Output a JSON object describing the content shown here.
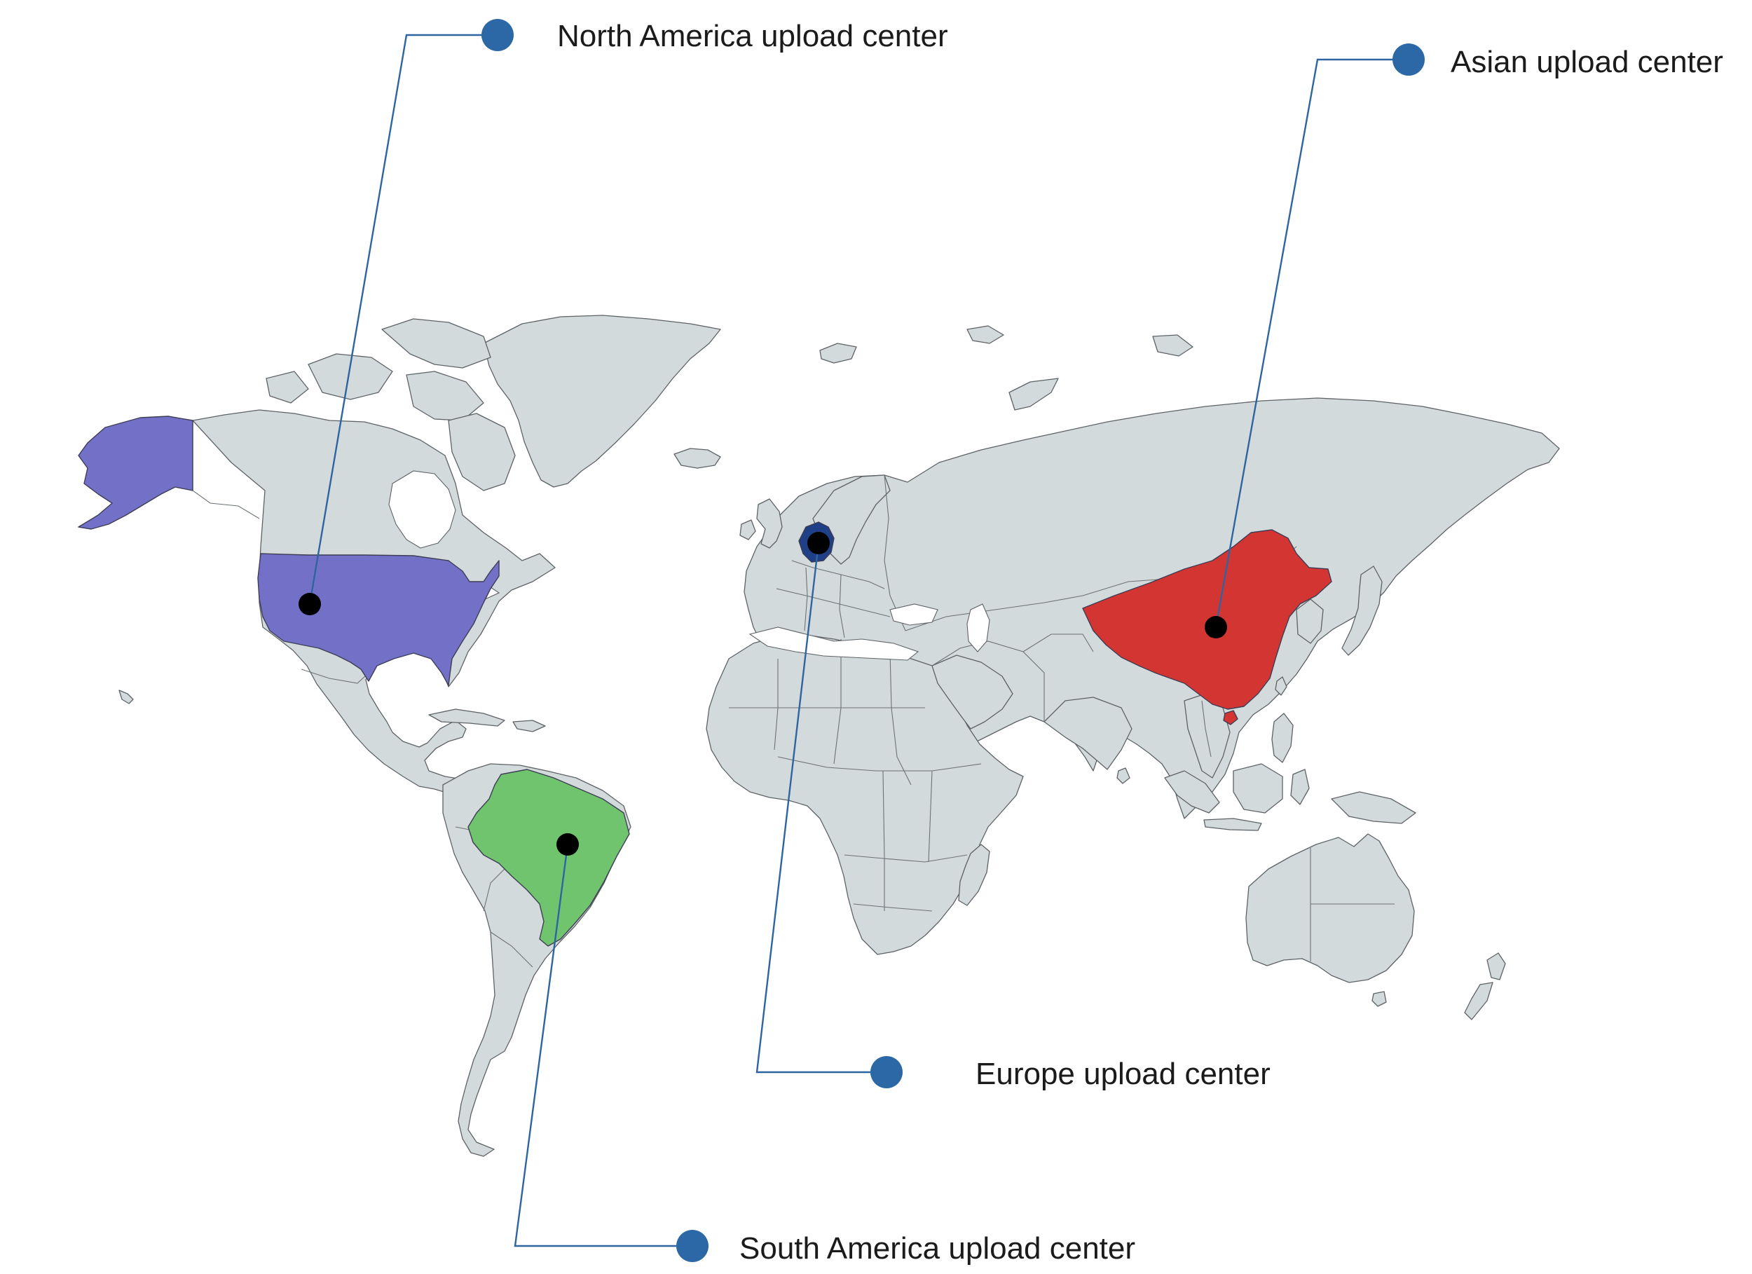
{
  "map": {
    "colors": {
      "land": "#d3dadb",
      "coast": "#5d6266",
      "leader_line": "#2e65a0",
      "label_dot": "#2d68a6",
      "location_dot": "#000000",
      "label_text": "#1b1b1b"
    },
    "highlighted_countries": [
      {
        "name": "United States",
        "color": "#7370c8"
      },
      {
        "name": "Brazil",
        "color": "#70c46e"
      },
      {
        "name": "Germany",
        "color": "#1f3f86"
      },
      {
        "name": "China",
        "color": "#d33632"
      }
    ],
    "upload_centers": [
      {
        "label": "North America upload center",
        "country": "United States"
      },
      {
        "label": "Asian upload center",
        "country": "China"
      },
      {
        "label": "Europe upload center",
        "country": "Germany"
      },
      {
        "label": "South America upload center",
        "country": "Brazil"
      }
    ]
  }
}
